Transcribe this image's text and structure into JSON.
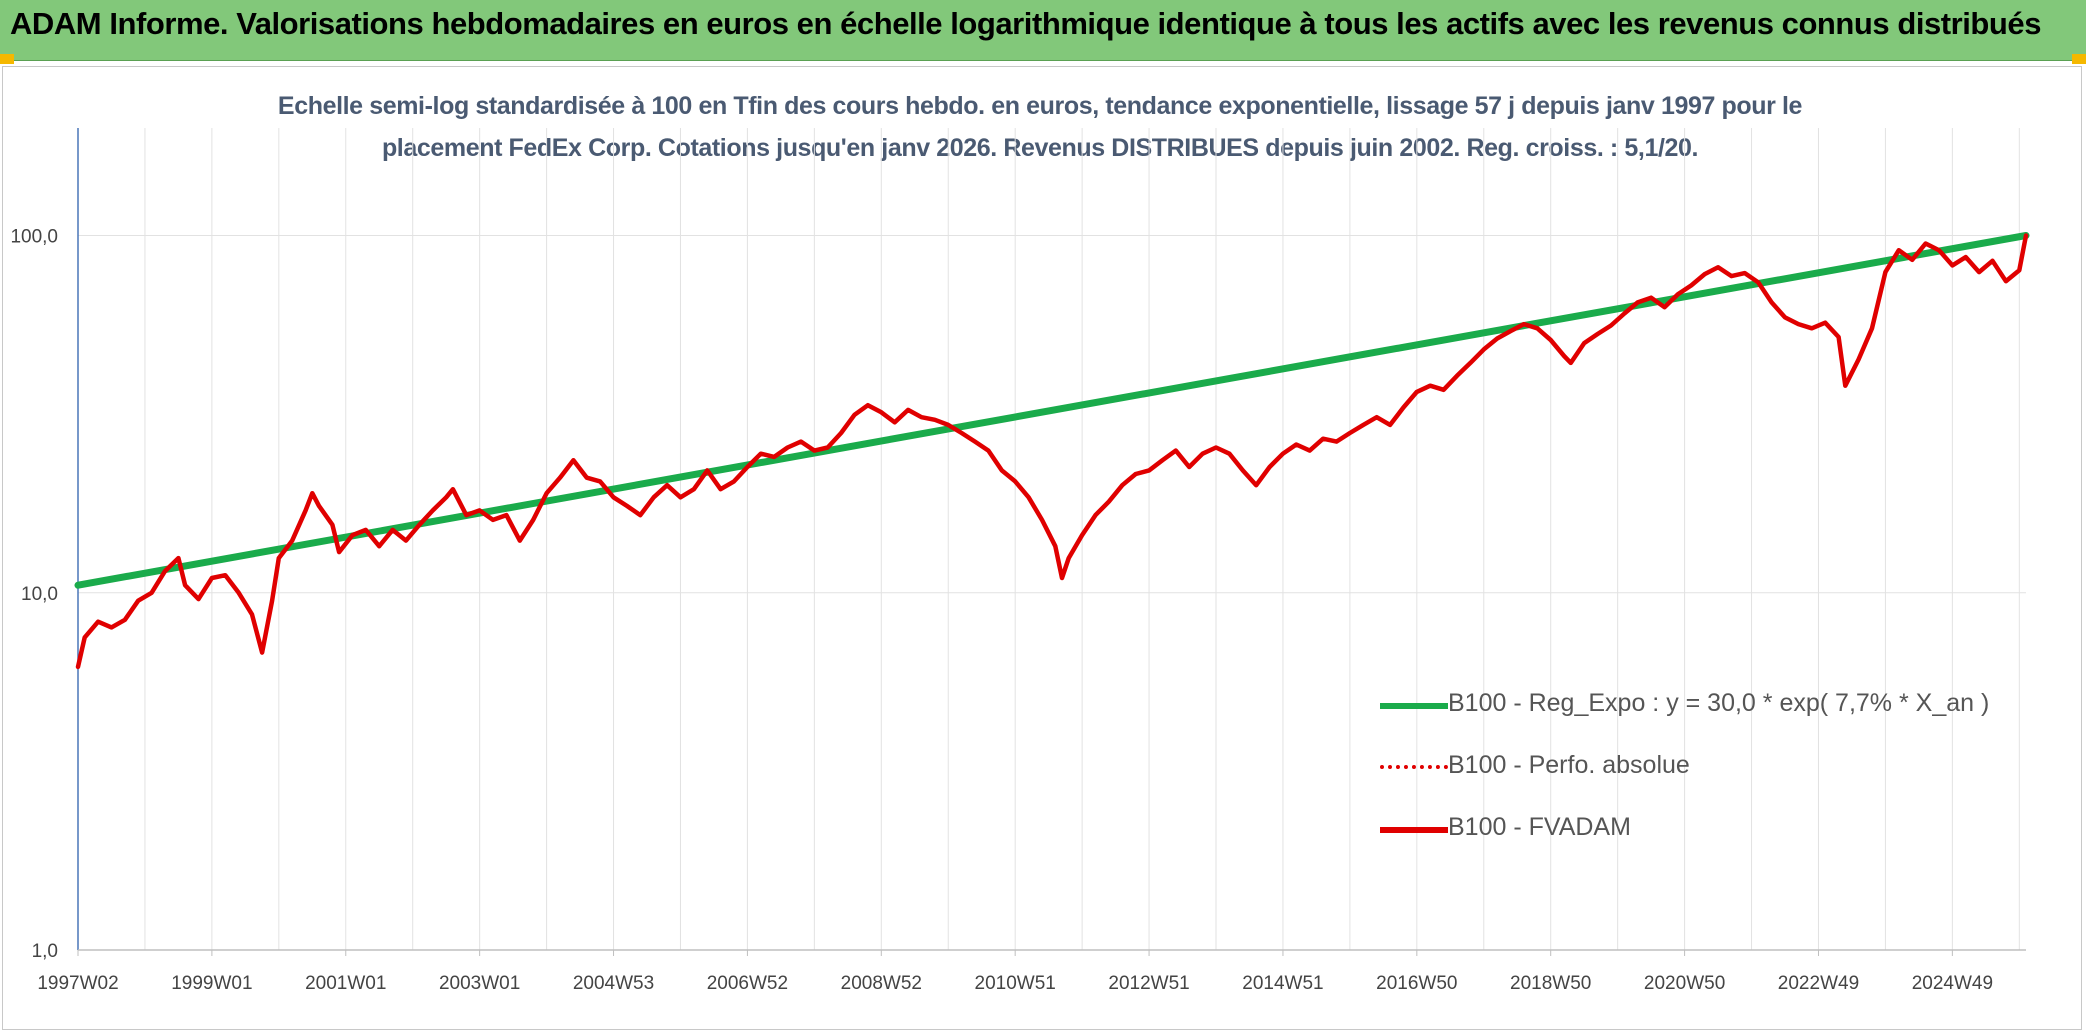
{
  "header": {
    "title": "ADAM Informe. Valorisations hebdomadaires en euros en échelle logarithmique identique à tous les actifs avec les revenus connus distribués"
  },
  "chart_data": {
    "type": "line",
    "title_lines": [
      "Echelle semi-log standardisée à 100 en Tfin des cours hebdo. en euros, tendance exponentielle, lissage 57 j depuis janv 1997 pour le",
      "placement FedEx Corp. Cotations jusqu'en janv 2026. Revenus DISTRIBUES depuis juin 2002. Reg. croiss. : 5,1/20."
    ],
    "y_scale": "log",
    "ylim": [
      1,
      200
    ],
    "y_ticks": [
      {
        "value": 1,
        "label": "1,0"
      },
      {
        "value": 10,
        "label": "10,0"
      },
      {
        "value": 100,
        "label": "100,0"
      }
    ],
    "x_range": [
      1997.0,
      2026.1
    ],
    "x_ticks": [
      {
        "year": 1997.0,
        "label": "1997W02"
      },
      {
        "year": 1999.0,
        "label": "1999W01"
      },
      {
        "year": 2001.0,
        "label": "2001W01"
      },
      {
        "year": 2003.0,
        "label": "2003W01"
      },
      {
        "year": 2005.0,
        "label": "2004W53"
      },
      {
        "year": 2007.0,
        "label": "2006W52"
      },
      {
        "year": 2009.0,
        "label": "2008W52"
      },
      {
        "year": 2011.0,
        "label": "2010W51"
      },
      {
        "year": 2013.0,
        "label": "2012W51"
      },
      {
        "year": 2015.0,
        "label": "2014W51"
      },
      {
        "year": 2017.0,
        "label": "2016W50"
      },
      {
        "year": 2019.0,
        "label": "2018W50"
      },
      {
        "year": 2021.0,
        "label": "2020W50"
      },
      {
        "year": 2023.0,
        "label": "2022W49"
      },
      {
        "year": 2025.0,
        "label": "2024W49"
      }
    ],
    "grid": true,
    "legend_position": "bottom-right",
    "series": [
      {
        "name": "B100 - Reg_Expo : y = 30,0 * exp( 7,7% *  X_an )",
        "color": "#1aab4b",
        "style": "solid",
        "points": [
          [
            1997.0,
            10.5
          ],
          [
            2026.1,
            100
          ]
        ]
      },
      {
        "name": "B100 - Perfo. absolue",
        "color": "#e00000",
        "style": "dotted",
        "points": []
      },
      {
        "name": "B100 - FVADAM",
        "color": "#e00000",
        "style": "solid",
        "points": [
          [
            1997.0,
            6.2
          ],
          [
            1997.1,
            7.5
          ],
          [
            1997.3,
            8.3
          ],
          [
            1997.5,
            8.0
          ],
          [
            1997.7,
            8.4
          ],
          [
            1997.9,
            9.5
          ],
          [
            1998.1,
            10.0
          ],
          [
            1998.3,
            11.5
          ],
          [
            1998.5,
            12.5
          ],
          [
            1998.6,
            10.5
          ],
          [
            1998.8,
            9.6
          ],
          [
            1999.0,
            11.0
          ],
          [
            1999.2,
            11.2
          ],
          [
            1999.4,
            10.0
          ],
          [
            1999.6,
            8.7
          ],
          [
            1999.75,
            6.8
          ],
          [
            1999.9,
            9.5
          ],
          [
            2000.0,
            12.5
          ],
          [
            2000.2,
            14.0
          ],
          [
            2000.4,
            17.0
          ],
          [
            2000.5,
            19.0
          ],
          [
            2000.6,
            17.5
          ],
          [
            2000.8,
            15.5
          ],
          [
            2000.9,
            13.0
          ],
          [
            2001.1,
            14.5
          ],
          [
            2001.3,
            15.0
          ],
          [
            2001.5,
            13.5
          ],
          [
            2001.7,
            15.0
          ],
          [
            2001.9,
            14.0
          ],
          [
            2002.1,
            15.5
          ],
          [
            2002.3,
            17.0
          ],
          [
            2002.5,
            18.5
          ],
          [
            2002.6,
            19.5
          ],
          [
            2002.8,
            16.5
          ],
          [
            2003.0,
            17.0
          ],
          [
            2003.2,
            16.0
          ],
          [
            2003.4,
            16.5
          ],
          [
            2003.6,
            14.0
          ],
          [
            2003.8,
            16.0
          ],
          [
            2004.0,
            19.0
          ],
          [
            2004.2,
            21.0
          ],
          [
            2004.4,
            23.5
          ],
          [
            2004.6,
            21.0
          ],
          [
            2004.8,
            20.5
          ],
          [
            2005.0,
            18.5
          ],
          [
            2005.2,
            17.5
          ],
          [
            2005.4,
            16.5
          ],
          [
            2005.6,
            18.5
          ],
          [
            2005.8,
            20.0
          ],
          [
            2006.0,
            18.5
          ],
          [
            2006.2,
            19.5
          ],
          [
            2006.4,
            22.0
          ],
          [
            2006.6,
            19.5
          ],
          [
            2006.8,
            20.5
          ],
          [
            2007.0,
            22.5
          ],
          [
            2007.2,
            24.5
          ],
          [
            2007.4,
            24.0
          ],
          [
            2007.6,
            25.5
          ],
          [
            2007.8,
            26.5
          ],
          [
            2008.0,
            25.0
          ],
          [
            2008.2,
            25.5
          ],
          [
            2008.4,
            28.0
          ],
          [
            2008.6,
            31.5
          ],
          [
            2008.8,
            33.5
          ],
          [
            2009.0,
            32.0
          ],
          [
            2009.2,
            30.0
          ],
          [
            2009.4,
            32.5
          ],
          [
            2009.6,
            31.0
          ],
          [
            2009.8,
            30.5
          ],
          [
            2010.0,
            29.5
          ],
          [
            2010.2,
            28.0
          ],
          [
            2010.4,
            26.5
          ],
          [
            2010.6,
            25.0
          ],
          [
            2010.8,
            22.0
          ],
          [
            2011.0,
            20.5
          ],
          [
            2011.2,
            18.5
          ],
          [
            2011.4,
            16.0
          ],
          [
            2011.6,
            13.5
          ],
          [
            2011.7,
            11.0
          ],
          [
            2011.8,
            12.5
          ],
          [
            2012.0,
            14.5
          ],
          [
            2012.2,
            16.5
          ],
          [
            2012.4,
            18.0
          ],
          [
            2012.6,
            20.0
          ],
          [
            2012.8,
            21.5
          ],
          [
            2013.0,
            22.0
          ],
          [
            2013.2,
            23.5
          ],
          [
            2013.4,
            25.0
          ],
          [
            2013.6,
            22.5
          ],
          [
            2013.8,
            24.5
          ],
          [
            2014.0,
            25.5
          ],
          [
            2014.2,
            24.5
          ],
          [
            2014.4,
            22.0
          ],
          [
            2014.6,
            20.0
          ],
          [
            2014.8,
            22.5
          ],
          [
            2015.0,
            24.5
          ],
          [
            2015.2,
            26.0
          ],
          [
            2015.4,
            25.0
          ],
          [
            2015.6,
            27.0
          ],
          [
            2015.8,
            26.5
          ],
          [
            2016.0,
            28.0
          ],
          [
            2016.2,
            29.5
          ],
          [
            2016.4,
            31.0
          ],
          [
            2016.6,
            29.5
          ],
          [
            2016.8,
            33.0
          ],
          [
            2017.0,
            36.5
          ],
          [
            2017.2,
            38.0
          ],
          [
            2017.4,
            37.0
          ],
          [
            2017.6,
            40.5
          ],
          [
            2017.8,
            44.0
          ],
          [
            2018.0,
            48.0
          ],
          [
            2018.2,
            51.5
          ],
          [
            2018.4,
            54.0
          ],
          [
            2018.6,
            56.5
          ],
          [
            2018.8,
            55.0
          ],
          [
            2019.0,
            51.0
          ],
          [
            2019.2,
            46.0
          ],
          [
            2019.3,
            44.0
          ],
          [
            2019.5,
            50.0
          ],
          [
            2019.7,
            53.0
          ],
          [
            2019.9,
            56.0
          ],
          [
            2020.1,
            60.5
          ],
          [
            2020.3,
            65.0
          ],
          [
            2020.5,
            67.0
          ],
          [
            2020.7,
            63.0
          ],
          [
            2020.9,
            68.5
          ],
          [
            2021.1,
            72.5
          ],
          [
            2021.3,
            78.0
          ],
          [
            2021.5,
            81.5
          ],
          [
            2021.7,
            77.0
          ],
          [
            2021.9,
            78.5
          ],
          [
            2022.1,
            74.0
          ],
          [
            2022.3,
            65.0
          ],
          [
            2022.5,
            59.0
          ],
          [
            2022.7,
            56.5
          ],
          [
            2022.9,
            55.0
          ],
          [
            2023.1,
            57.0
          ],
          [
            2023.3,
            52.0
          ],
          [
            2023.4,
            38.0
          ],
          [
            2023.6,
            45.0
          ],
          [
            2023.8,
            55.0
          ],
          [
            2024.0,
            79.0
          ],
          [
            2024.2,
            91.0
          ],
          [
            2024.4,
            85.5
          ],
          [
            2024.6,
            95.0
          ],
          [
            2024.8,
            91.0
          ],
          [
            2025.0,
            82.5
          ],
          [
            2025.2,
            87.0
          ],
          [
            2025.4,
            79.0
          ],
          [
            2025.6,
            85.0
          ],
          [
            2025.8,
            74.5
          ],
          [
            2026.0,
            80.0
          ],
          [
            2026.1,
            100.0
          ]
        ]
      }
    ]
  }
}
